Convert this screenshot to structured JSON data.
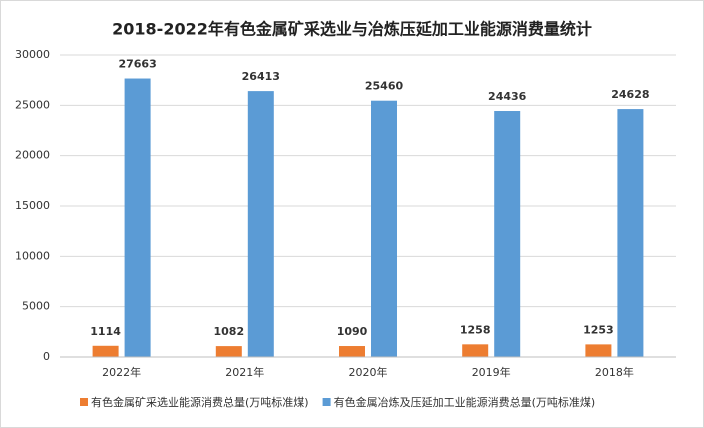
{
  "chart_data": {
    "type": "bar",
    "title": "2018-2022年有色金属矿采选业与冶炼压延加工业能源消费量统计",
    "categories": [
      "2022年",
      "2021年",
      "2020年",
      "2019年",
      "2018年"
    ],
    "series": [
      {
        "name": "有色金属矿采选业能源消费总量(万吨标准煤)",
        "color": "#ed7d31",
        "values": [
          1114,
          1082,
          1090,
          1258,
          1253
        ]
      },
      {
        "name": "有色金属冶炼及压延加工业能源消费总量(万吨标准煤)",
        "color": "#5b9bd5",
        "values": [
          27663,
          26413,
          25460,
          24436,
          24628
        ]
      }
    ],
    "ylim": [
      0,
      30000
    ],
    "yticks": [
      0,
      5000,
      10000,
      15000,
      20000,
      25000,
      30000
    ],
    "grid": true,
    "legend": "bottom"
  }
}
